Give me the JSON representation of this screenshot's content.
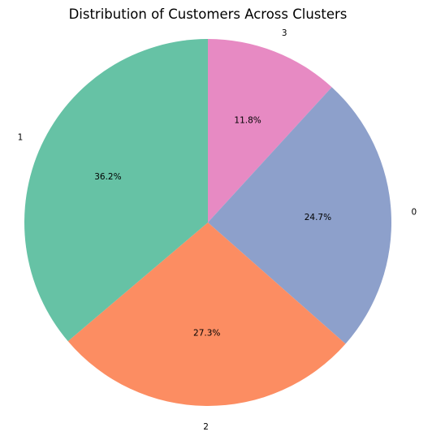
{
  "chart_data": {
    "type": "pie",
    "title": "Distribution of Customers Across Clusters",
    "slices": [
      {
        "label": "3",
        "value": 11.8,
        "pct_text": "11.8%",
        "color": "#e78ac3"
      },
      {
        "label": "0",
        "value": 24.7,
        "pct_text": "24.7%",
        "color": "#8da0cb"
      },
      {
        "label": "2",
        "value": 27.3,
        "pct_text": "27.3%",
        "color": "#fc8d62"
      },
      {
        "label": "1",
        "value": 36.2,
        "pct_text": "36.2%",
        "color": "#66c2a5"
      }
    ],
    "start_angle": 90,
    "direction": "clockwise",
    "legend": "none"
  }
}
